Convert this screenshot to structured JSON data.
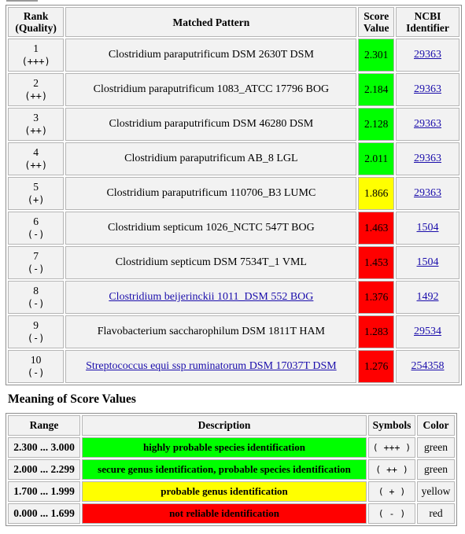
{
  "results": {
    "headers": {
      "rank": [
        "Rank",
        "(Quality)"
      ],
      "pattern": "Matched Pattern",
      "score": [
        "Score",
        "Value"
      ],
      "ncbi": [
        "NCBI",
        "Identifier"
      ]
    },
    "rows": [
      {
        "rank": "1",
        "quality": "(+++)",
        "pattern": "Clostridium paraputrificum DSM 2630T DSM",
        "pattern_link": false,
        "score": "2.301",
        "score_color": "#00ff00",
        "ncbi": "29363"
      },
      {
        "rank": "2",
        "quality": "(++)",
        "pattern": "Clostridium paraputrificum 1083_ATCC 17796 BOG",
        "pattern_link": false,
        "score": "2.184",
        "score_color": "#00ff00",
        "ncbi": "29363"
      },
      {
        "rank": "3",
        "quality": "(++)",
        "pattern": "Clostridium paraputrificum DSM 46280 DSM",
        "pattern_link": false,
        "score": "2.128",
        "score_color": "#00ff00",
        "ncbi": "29363"
      },
      {
        "rank": "4",
        "quality": "(++)",
        "pattern": "Clostridium paraputrificum AB_8 LGL",
        "pattern_link": false,
        "score": "2.011",
        "score_color": "#00ff00",
        "ncbi": "29363"
      },
      {
        "rank": "5",
        "quality": "(+)",
        "pattern": "Clostridium paraputrificum 110706_B3 LUMC",
        "pattern_link": false,
        "score": "1.866",
        "score_color": "#ffff00",
        "ncbi": "29363"
      },
      {
        "rank": "6",
        "quality": "(-)",
        "pattern": "Clostridium septicum 1026_NCTC 547T BOG",
        "pattern_link": false,
        "score": "1.463",
        "score_color": "#ff0000",
        "ncbi": "1504"
      },
      {
        "rank": "7",
        "quality": "(-)",
        "pattern": "Clostridium septicum DSM 7534T_1 VML",
        "pattern_link": false,
        "score": "1.453",
        "score_color": "#ff0000",
        "ncbi": "1504"
      },
      {
        "rank": "8",
        "quality": "(-)",
        "pattern": "Clostridium beijerinckii 1011_DSM 552 BOG",
        "pattern_link": true,
        "score": "1.376",
        "score_color": "#ff0000",
        "ncbi": "1492"
      },
      {
        "rank": "9",
        "quality": "(-)",
        "pattern": "Flavobacterium saccharophilum DSM 1811T HAM",
        "pattern_link": false,
        "score": "1.283",
        "score_color": "#ff0000",
        "ncbi": "29534"
      },
      {
        "rank": "10",
        "quality": "(-)",
        "pattern": "Streptococcus equi ssp ruminatorum DSM 17037T DSM",
        "pattern_link": true,
        "score": "1.276",
        "score_color": "#ff0000",
        "ncbi": "254358"
      }
    ]
  },
  "legend": {
    "title": "Meaning of Score Values",
    "headers": {
      "range": "Range",
      "description": "Description",
      "symbols": "Symbols",
      "color": "Color"
    },
    "rows": [
      {
        "range": "2.300 ... 3.000",
        "description": "highly probable species identification",
        "symbols": "( +++ )",
        "color": "green",
        "bg": "#00ff00"
      },
      {
        "range": "2.000 ... 2.299",
        "description": "secure genus identification, probable species identification",
        "symbols": "( ++ )",
        "color": "green",
        "bg": "#00ff00"
      },
      {
        "range": "1.700 ... 1.999",
        "description": "probable genus identification",
        "symbols": "( + )",
        "color": "yellow",
        "bg": "#ffff00"
      },
      {
        "range": "0.000 ... 1.699",
        "description": "not reliable identification",
        "symbols": "( - )",
        "color": "red",
        "bg": "#ff0000"
      }
    ]
  }
}
